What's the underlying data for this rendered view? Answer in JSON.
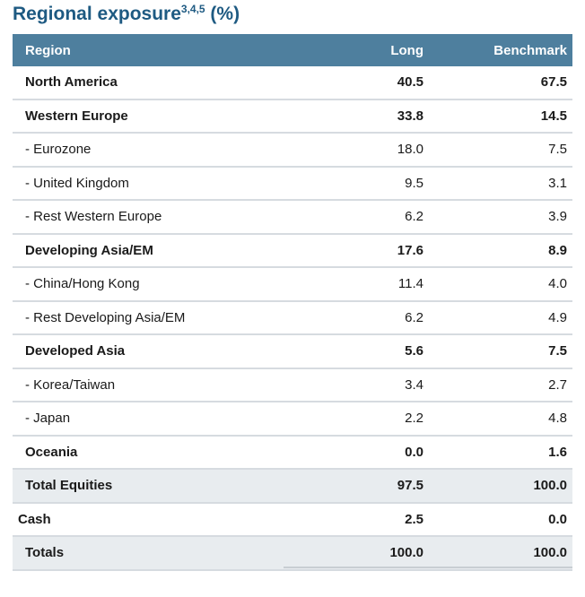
{
  "title": {
    "text": "Regional exposure",
    "sup": "3,4,5",
    "suffix": " (%)"
  },
  "header": {
    "region": "Region",
    "long": "Long",
    "benchmark": "Benchmark"
  },
  "rows": [
    {
      "region": "North America",
      "long": "40.5",
      "benchmark": "67.5",
      "style": "bold"
    },
    {
      "region": "Western Europe",
      "long": "33.8",
      "benchmark": "14.5",
      "style": "bold"
    },
    {
      "region": "- Eurozone",
      "long": "18.0",
      "benchmark": "7.5",
      "style": "normal"
    },
    {
      "region": "- United Kingdom",
      "long": "9.5",
      "benchmark": "3.1",
      "style": "normal"
    },
    {
      "region": "- Rest Western Europe",
      "long": "6.2",
      "benchmark": "3.9",
      "style": "normal"
    },
    {
      "region": "Developing Asia/EM",
      "long": "17.6",
      "benchmark": "8.9",
      "style": "bold"
    },
    {
      "region": "- China/Hong Kong",
      "long": "11.4",
      "benchmark": "4.0",
      "style": "normal"
    },
    {
      "region": "- Rest Developing Asia/EM",
      "long": "6.2",
      "benchmark": "4.9",
      "style": "normal"
    },
    {
      "region": "Developed Asia",
      "long": "5.6",
      "benchmark": "7.5",
      "style": "bold"
    },
    {
      "region": "- Korea/Taiwan",
      "long": "3.4",
      "benchmark": "2.7",
      "style": "normal"
    },
    {
      "region": "- Japan",
      "long": "2.2",
      "benchmark": "4.8",
      "style": "normal"
    },
    {
      "region": "Oceania",
      "long": "0.0",
      "benchmark": "1.6",
      "style": "bold"
    },
    {
      "region": "Total Equities",
      "long": "97.5",
      "benchmark": "100.0",
      "style": "total"
    },
    {
      "region": "Cash",
      "long": "2.5",
      "benchmark": "0.0",
      "style": "cash"
    },
    {
      "region": "Totals",
      "long": "100.0",
      "benchmark": "100.0",
      "style": "total"
    }
  ],
  "colors": {
    "title": "#1e5a82",
    "header_bg": "#4e7f9e",
    "total_bg": "#e8ecef",
    "rule": "#d6dbe0"
  }
}
